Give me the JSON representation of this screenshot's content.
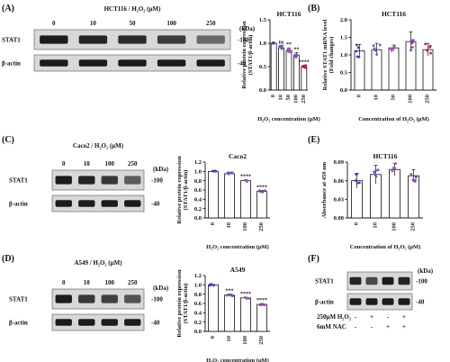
{
  "panel_labels": {
    "A": "(A)",
    "B": "(B)",
    "C": "(C)",
    "D": "(D)",
    "E": "(E)",
    "F": "(F)"
  },
  "blots": {
    "A": {
      "header": "HCT116 / H₂O₂ (μM)",
      "lanes": [
        "0",
        "10",
        "50",
        "100",
        "250"
      ],
      "unit": "(kDa)",
      "rows": [
        {
          "label": "STAT1",
          "kda": "-100",
          "intensity": [
            1,
            0.95,
            0.9,
            0.78,
            0.45
          ]
        },
        {
          "label": "β-actin",
          "kda": "-40",
          "intensity": [
            1,
            1,
            1,
            1,
            1
          ]
        }
      ]
    },
    "C": {
      "header": "Caco2 / H₂O₂ (μM)",
      "lanes": [
        "0",
        "10",
        "100",
        "250"
      ],
      "unit": "(kDa)",
      "rows": [
        {
          "label": "STAT1",
          "kda": "-100",
          "intensity": [
            1,
            0.95,
            0.8,
            0.55
          ]
        },
        {
          "label": "β-actin",
          "kda": "-40",
          "intensity": [
            1,
            1,
            1,
            1
          ]
        }
      ]
    },
    "D": {
      "header": "A549 / H₂O₂ (μM)",
      "lanes": [
        "0",
        "10",
        "100",
        "250"
      ],
      "unit": "(kDa)",
      "rows": [
        {
          "label": "STAT1",
          "kda": "-100",
          "intensity": [
            1,
            0.8,
            0.75,
            0.6
          ]
        },
        {
          "label": "β-actin",
          "kda": "-40",
          "intensity": [
            1,
            1,
            1,
            1
          ]
        }
      ]
    },
    "F": {
      "header": "",
      "lanes": [
        "",
        "",
        "",
        ""
      ],
      "unit": "(kDa)",
      "rows": [
        {
          "label": "STAT1",
          "kda": "-100",
          "intensity": [
            0.95,
            0.7,
            1,
            0.95
          ]
        },
        {
          "label": "β-actin",
          "kda": "-40",
          "intensity": [
            1,
            1,
            1,
            1
          ]
        }
      ],
      "treatments": [
        {
          "label": "250μM H₂O₂",
          "signs": [
            "-",
            "+",
            "-",
            "+"
          ]
        },
        {
          "label": "6mM NAC",
          "signs": [
            "-",
            "-",
            "+",
            "+"
          ]
        }
      ]
    }
  },
  "chart_data": [
    {
      "id": "A",
      "type": "bar",
      "title": "HCT116",
      "categories": [
        "0",
        "10",
        "50",
        "100",
        "250"
      ],
      "values": [
        1.0,
        0.9,
        0.85,
        0.75,
        0.5
      ],
      "errors": [
        0.01,
        0.05,
        0.05,
        0.05,
        0.03
      ],
      "significance": [
        "",
        "ns",
        "**",
        "**",
        "****"
      ],
      "ylabel": "Relative protein expression (STAT1/β-actin)",
      "xlabel": "H₂O₂ concentration (μM)",
      "ylim": [
        0,
        1.5
      ],
      "yticks": [
        0.0,
        0.5,
        1.0,
        1.5
      ],
      "ytick_labels": [
        "0.0",
        "0.5",
        "1.0",
        "1.5"
      ],
      "dot_color": "#3a3fbf"
    },
    {
      "id": "B",
      "type": "bar",
      "title": "HCT116",
      "categories": [
        "0",
        "10",
        "50",
        "100",
        "250"
      ],
      "values": [
        1.12,
        1.15,
        1.2,
        1.38,
        1.15
      ],
      "errors": [
        0.18,
        0.18,
        0.08,
        0.28,
        0.18
      ],
      "significance": [
        "",
        "",
        "",
        "",
        ""
      ],
      "ylabel": "Relative STAT1 mRNA level (Fold changes)",
      "xlabel": "Concentration of H₂O₂ (μM)",
      "ylim": [
        0,
        2.0
      ],
      "yticks": [
        0.0,
        0.5,
        1.0,
        1.5,
        2.0
      ],
      "ytick_labels": [
        "0.0",
        "0.5",
        "1.0",
        "1.5",
        "2.0"
      ],
      "dot_color": "#3a3fbf"
    },
    {
      "id": "C",
      "type": "bar",
      "title": "Caco2",
      "categories": [
        "0",
        "10",
        "100",
        "250"
      ],
      "values": [
        1.0,
        0.95,
        0.8,
        0.57
      ],
      "errors": [
        0.01,
        0.03,
        0.02,
        0.02
      ],
      "significance": [
        "",
        "",
        "****",
        "****"
      ],
      "ylabel": "Relative protein expression (STAT1/β-actin)",
      "xlabel": "H₂O₂ concentration (μM)",
      "ylim": [
        0,
        1.2
      ],
      "yticks": [
        0.0,
        0.2,
        0.4,
        0.6,
        0.8,
        1.0,
        1.2
      ],
      "ytick_labels": [
        "0.0",
        "0.2",
        "0.4",
        "0.6",
        "0.8",
        "1.0",
        "1.2"
      ],
      "dot_color": "#3a3fbf"
    },
    {
      "id": "E",
      "type": "bar",
      "title": "HCT116",
      "categories": [
        "0",
        "10",
        "100",
        "250"
      ],
      "values": [
        0.06,
        0.07,
        0.078,
        0.068
      ],
      "errors": [
        0.012,
        0.015,
        0.01,
        0.01
      ],
      "significance": [
        "",
        "",
        "",
        ""
      ],
      "ylabel": "Absorbance at 450 nm",
      "xlabel": "Concentration of H₂O₂ (μM)",
      "ylim": [
        0,
        0.09
      ],
      "yticks": [
        0.0,
        0.03,
        0.06,
        0.09
      ],
      "ytick_labels": [
        "0.00",
        "0.03",
        "0.06",
        "0.09"
      ],
      "dot_color": "#3a3fbf"
    },
    {
      "id": "D",
      "type": "bar",
      "title": "A549",
      "categories": [
        "0",
        "10",
        "100",
        "250"
      ],
      "values": [
        1.0,
        0.78,
        0.72,
        0.58
      ],
      "errors": [
        0.01,
        0.02,
        0.02,
        0.02
      ],
      "significance": [
        "",
        "***",
        "****",
        "****"
      ],
      "ylabel": "Relative protein expression (STAT1/β-actin)",
      "xlabel": "H₂O₂ concentration (μM)",
      "ylim": [
        0,
        1.2
      ],
      "yticks": [
        0.0,
        0.2,
        0.4,
        0.6,
        0.8,
        1.0,
        1.2
      ],
      "ytick_labels": [
        "0.0",
        "0.2",
        "0.4",
        "0.6",
        "0.8",
        "1.0",
        "1.2"
      ],
      "dot_color": "#3a3fbf"
    }
  ],
  "colors": {
    "bar_colors": [
      "#3a3fbf",
      "#5b5fc7",
      "#a05ab8",
      "#8e44ad",
      "#c2185b"
    ],
    "blot_bg": "#d8d8d8",
    "band": "#1c1c1c"
  }
}
